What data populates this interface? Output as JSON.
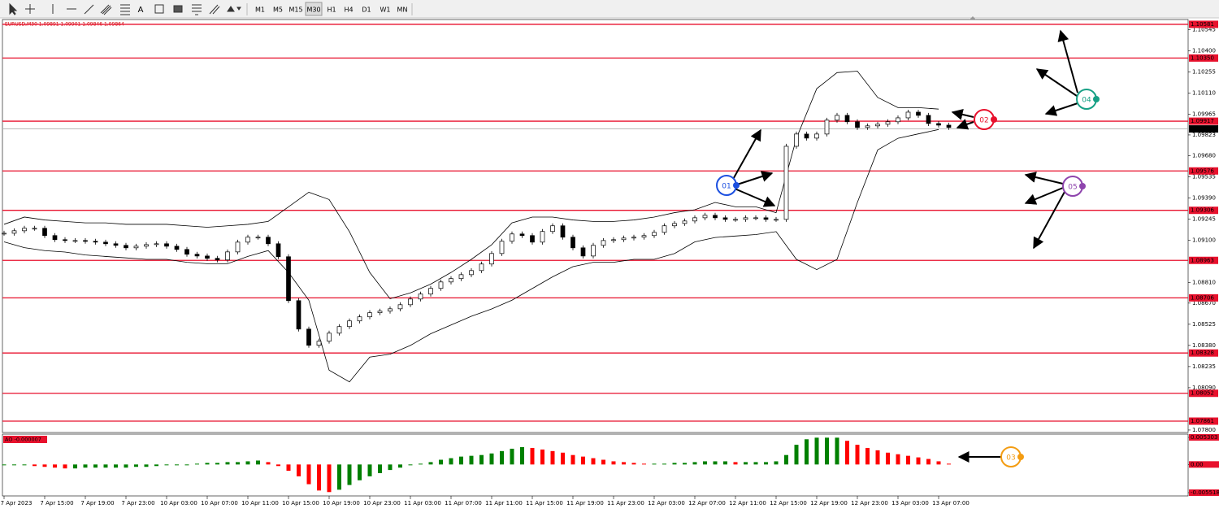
{
  "toolbar": {
    "timeframes": [
      "M1",
      "M5",
      "M15",
      "M30",
      "H1",
      "H4",
      "D1",
      "W1",
      "MN"
    ],
    "selected": 3
  },
  "chart": {
    "symbol_info": "EURUSD,M30  1.09891 1.09901 1.09846 1.09864",
    "ylim": [
      1.07783,
      1.10614
    ],
    "yticks": [
      {
        "value": 1.10545,
        "label": "1.10545"
      },
      {
        "value": 1.104,
        "label": "1.10400"
      },
      {
        "value": 1.10255,
        "label": "1.10255"
      },
      {
        "value": 1.1011,
        "label": "1.10110"
      },
      {
        "value": 1.09965,
        "label": "1.09965"
      },
      {
        "value": 1.09823,
        "label": "1.09823"
      },
      {
        "value": 1.0968,
        "label": "1.09680"
      },
      {
        "value": 1.09535,
        "label": "1.09535"
      },
      {
        "value": 1.0939,
        "label": "1.09390"
      },
      {
        "value": 1.09245,
        "label": "1.09245"
      },
      {
        "value": 1.091,
        "label": "1.09100"
      },
      {
        "value": 1.0881,
        "label": "1.08810"
      },
      {
        "value": 1.0867,
        "label": "1.08670"
      },
      {
        "value": 1.08525,
        "label": "1.08525"
      },
      {
        "value": 1.0838,
        "label": "1.08380"
      },
      {
        "value": 1.08235,
        "label": "1.08235"
      },
      {
        "value": 1.0809,
        "label": "1.08090"
      },
      {
        "value": 1.078,
        "label": "1.07800"
      }
    ],
    "levels": [
      {
        "value": 1.10581,
        "label": "1.10581"
      },
      {
        "value": 1.1035,
        "label": "1.10350"
      },
      {
        "value": 1.09917,
        "label": "1.09917"
      },
      {
        "value": 1.09576,
        "label": "1.09576"
      },
      {
        "value": 1.09306,
        "label": "1.09306"
      },
      {
        "value": 1.08963,
        "label": "1.08963"
      },
      {
        "value": 1.08706,
        "label": "1.08706"
      },
      {
        "value": 1.08328,
        "label": "1.08328"
      },
      {
        "value": 1.08052,
        "label": "1.08052"
      },
      {
        "value": 1.07861,
        "label": "1.07861"
      }
    ],
    "level_color": "#e8112d",
    "current_price": {
      "value": 1.09864,
      "label": "1.09864"
    },
    "time_labels": [
      "7 Apr 2023",
      "7 Apr 15:00",
      "7 Apr 19:00",
      "7 Apr 23:00",
      "10 Apr 03:00",
      "10 Apr 07:00",
      "10 Apr 11:00",
      "10 Apr 15:00",
      "10 Apr 19:00",
      "10 Apr 23:00",
      "11 Apr 03:00",
      "11 Apr 07:00",
      "11 Apr 11:00",
      "11 Apr 15:00",
      "11 Apr 19:00",
      "11 Apr 23:00",
      "12 Apr 03:00",
      "12 Apr 07:00",
      "12 Apr 11:00",
      "12 Apr 15:00",
      "12 Apr 19:00",
      "12 Apr 23:00",
      "13 Apr 03:00",
      "13 Apr 07:00"
    ],
    "close": [
      1.09149,
      1.09166,
      1.09183,
      1.09183,
      1.09133,
      1.09105,
      1.09099,
      1.09099,
      1.09094,
      1.09088,
      1.09077,
      1.09066,
      1.09049,
      1.0906,
      1.09071,
      1.09077,
      1.0906,
      1.09038,
      1.09005,
      1.08993,
      1.08977,
      1.08966,
      1.09021,
      1.09088,
      1.09122,
      1.09122,
      1.09077,
      1.08988,
      1.08687,
      1.08492,
      1.08381,
      1.08409,
      1.08464,
      1.08509,
      1.08548,
      1.08576,
      1.08604,
      1.08615,
      1.08631,
      1.08659,
      1.08698,
      1.08732,
      1.08771,
      1.08815,
      1.08838,
      1.08865,
      1.08893,
      1.08938,
      1.0901,
      1.09094,
      1.09144,
      1.09133,
      1.09088,
      1.09161,
      1.092,
      1.09122,
      1.09049,
      1.08993,
      1.09066,
      1.09099,
      1.09105,
      1.09116,
      1.09122,
      1.09133,
      1.09155,
      1.092,
      1.09216,
      1.09233,
      1.09255,
      1.09272,
      1.09255,
      1.09244,
      1.09244,
      1.09255,
      1.09255,
      1.09244,
      1.09244,
      1.09745,
      1.09829,
      1.09801,
      1.09829,
      1.09924,
      1.09957,
      1.09913,
      1.09874,
      1.09885,
      1.09896,
      1.09913,
      1.0994,
      1.09979,
      1.09957,
      1.09901,
      1.0989,
      1.09874
    ],
    "bands": {
      "upper": [
        1.0921,
        1.0926,
        1.0924,
        1.0923,
        1.0922,
        1.0922,
        1.0921,
        1.0921,
        1.0921,
        1.092,
        1.0919,
        1.092,
        1.0921,
        1.0923,
        1.0933,
        1.0943,
        1.0938,
        1.0916,
        1.0888,
        1.087,
        1.0874,
        1.088,
        1.0888,
        1.0897,
        1.0907,
        1.0922,
        1.0926,
        1.0926,
        1.0924,
        1.0923,
        1.0923,
        1.0924,
        1.0926,
        1.0929,
        1.0931,
        1.0936,
        1.0933,
        1.0933,
        1.0929,
        1.098,
        1.1014,
        1.1025,
        1.1026,
        1.1008,
        1.1001,
        1.1001,
        1.1
      ],
      "lower": [
        1.0909,
        1.0905,
        1.0903,
        1.0902,
        1.09,
        1.0899,
        1.0898,
        1.0897,
        1.0897,
        1.0895,
        1.0894,
        1.0894,
        1.0899,
        1.0903,
        1.0888,
        1.0869,
        1.0821,
        1.0813,
        1.083,
        1.0832,
        1.0838,
        1.0846,
        1.0852,
        1.0858,
        1.0863,
        1.0869,
        1.0877,
        1.0885,
        1.0892,
        1.0895,
        1.0895,
        1.0897,
        1.0897,
        1.0901,
        1.0909,
        1.0912,
        1.0913,
        1.0914,
        1.0916,
        1.0897,
        1.089,
        1.0897,
        1.0936,
        1.0972,
        1.098,
        1.0983,
        1.0986
      ]
    },
    "annotations": [
      {
        "label": "01",
        "color": "#1b4fe0"
      },
      {
        "label": "02",
        "color": "#e8112d"
      },
      {
        "label": "03",
        "color": "#f39c12"
      },
      {
        "label": "04",
        "color": "#16a085"
      },
      {
        "label": "05",
        "color": "#8e44ad"
      }
    ]
  },
  "oscillator": {
    "label": "AO -0.000007",
    "ylim": [
      -0.005518,
      0.005303
    ],
    "yticks": [
      {
        "value": 0.005303,
        "label": "0.005303"
      },
      {
        "value": 0,
        "label": "0.00"
      },
      {
        "value": -0.005518,
        "label": "-0.005518"
      }
    ],
    "up_color": "#008000",
    "down_color": "#ff0000",
    "values": [
      -0.000154,
      -0.000154,
      -0.000154,
      -0.000309,
      -0.000463,
      -0.000617,
      -0.000772,
      -0.000772,
      -0.000617,
      -0.000617,
      -0.000617,
      -0.000617,
      -0.000617,
      -0.000463,
      -0.000463,
      -0.000309,
      -0.000154,
      -0.000154,
      0,
      0.000154,
      0.000309,
      0.000309,
      0.000463,
      0.000463,
      0.000617,
      0.000772,
      0.000463,
      -0.000309,
      -0.001235,
      -0.002315,
      -0.003858,
      -0.005093,
      -0.005401,
      -0.004938,
      -0.004012,
      -0.003086,
      -0.002315,
      -0.001698,
      -0.00108,
      -0.000617,
      -0.000154,
      0.000154,
      0.000463,
      0.000926,
      0.001235,
      0.001543,
      0.001698,
      0.001852,
      0.00216,
      0.002623,
      0.003086,
      0.003395,
      0.003241,
      0.002932,
      0.002623,
      0.002315,
      0.001852,
      0.001543,
      0.001235,
      0.000926,
      0.000617,
      0.000463,
      0.000309,
      0.000154,
      0.000154,
      0.000154,
      0.000309,
      0.000309,
      0.000463,
      0.000617,
      0.000617,
      0.000617,
      0.000463,
      0.000463,
      0.000463,
      0.000463,
      0.000617,
      0.001852,
      0.003858,
      0.004938,
      0.005247,
      0.005247,
      0.005247,
      0.00463,
      0.003858,
      0.003241,
      0.002778,
      0.002315,
      0.002006,
      0.001698,
      0.001389,
      0.00108,
      0.000617,
      0.000154
    ]
  }
}
